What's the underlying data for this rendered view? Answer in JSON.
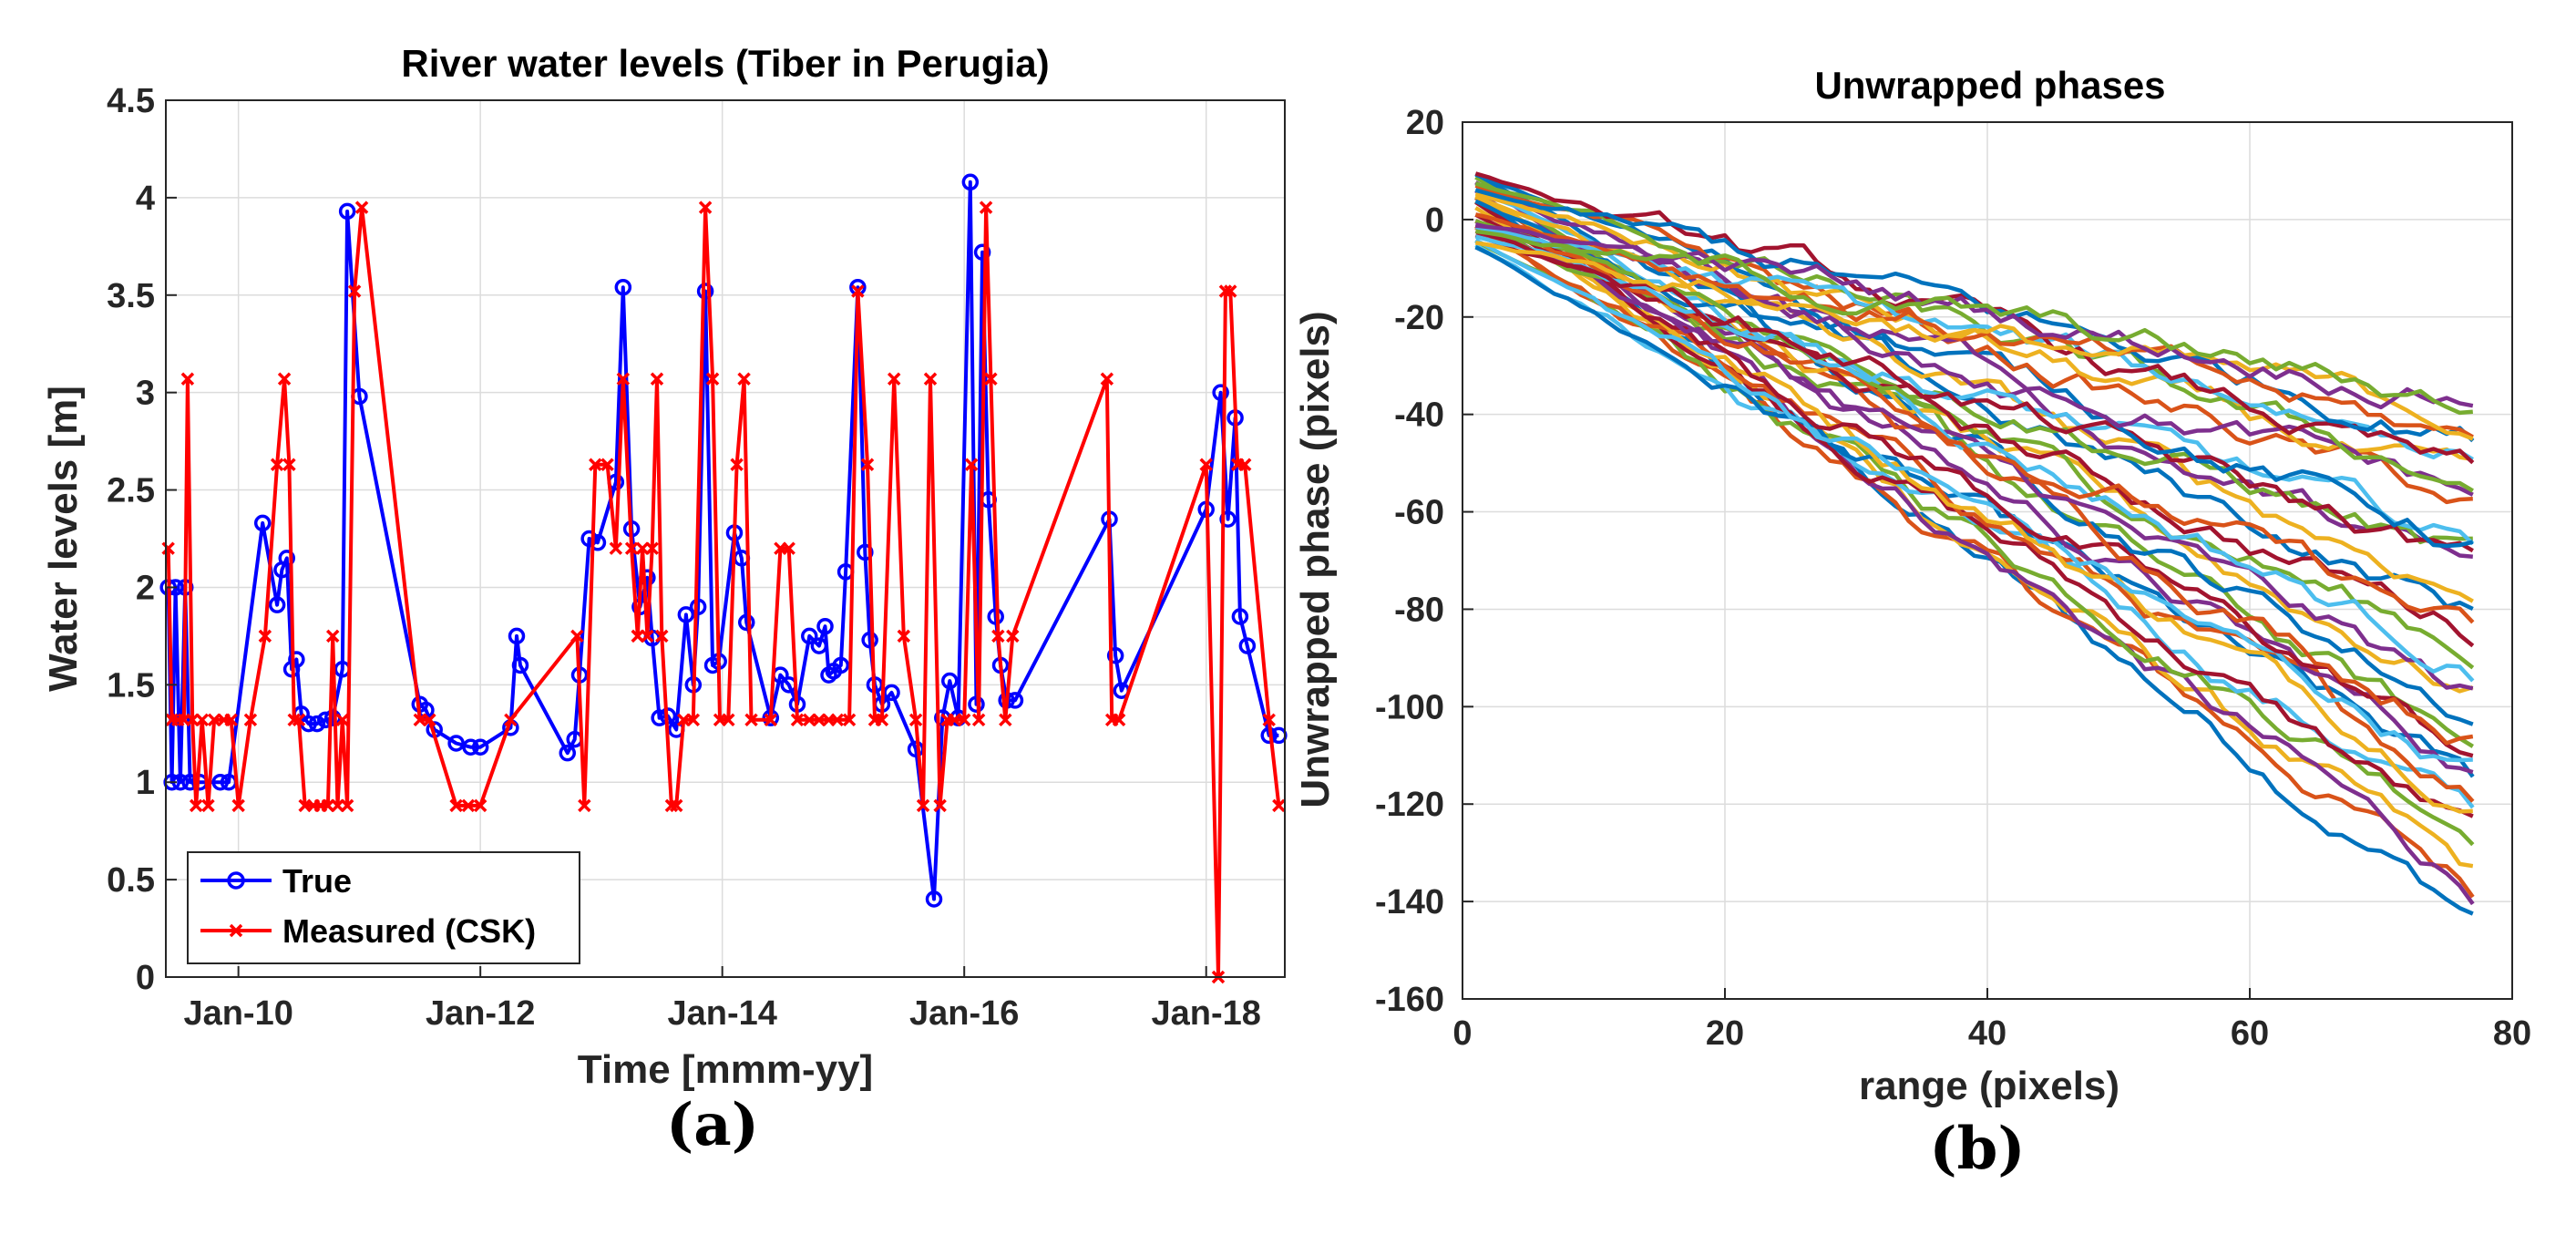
{
  "panels": [
    {
      "label": "(a)"
    },
    {
      "label": "(b)"
    }
  ],
  "chart_data": [
    {
      "type": "line",
      "title": "River water levels (Tiber in Perugia)",
      "xlabel": "Time [mmm-yy]",
      "ylabel": "Water levels [m]",
      "xlim": [
        2009.4,
        2018.65
      ],
      "ylim": [
        0,
        4.5
      ],
      "yticks": [
        0,
        0.5,
        1,
        1.5,
        2,
        2.5,
        3,
        3.5,
        4,
        4.5
      ],
      "xticks": [
        {
          "value": 2010,
          "label": "Jan-10"
        },
        {
          "value": 2012,
          "label": "Jan-12"
        },
        {
          "value": 2014,
          "label": "Jan-14"
        },
        {
          "value": 2016,
          "label": "Jan-16"
        },
        {
          "value": 2018,
          "label": "Jan-18"
        }
      ],
      "grid": true,
      "legend_position": "bottom-left",
      "series": [
        {
          "name": "True",
          "color": "#0000ff",
          "marker": "circle",
          "points": [
            [
              2009.42,
              2.0
            ],
            [
              2009.45,
              1.0
            ],
            [
              2009.48,
              2.0
            ],
            [
              2009.52,
              1.0
            ],
            [
              2009.56,
              2.0
            ],
            [
              2009.6,
              1.0
            ],
            [
              2009.68,
              1.0
            ],
            [
              2009.85,
              1.0
            ],
            [
              2009.92,
              1.0
            ],
            [
              2010.2,
              2.33
            ],
            [
              2010.32,
              1.91
            ],
            [
              2010.36,
              2.09
            ],
            [
              2010.4,
              2.15
            ],
            [
              2010.44,
              1.58
            ],
            [
              2010.48,
              1.63
            ],
            [
              2010.52,
              1.35
            ],
            [
              2010.58,
              1.3
            ],
            [
              2010.65,
              1.3
            ],
            [
              2010.72,
              1.32
            ],
            [
              2010.78,
              1.33
            ],
            [
              2010.86,
              1.58
            ],
            [
              2010.9,
              3.93
            ],
            [
              2011.0,
              2.98
            ],
            [
              2011.5,
              1.4
            ],
            [
              2011.55,
              1.37
            ],
            [
              2011.62,
              1.27
            ],
            [
              2011.8,
              1.2
            ],
            [
              2011.92,
              1.18
            ],
            [
              2012.0,
              1.18
            ],
            [
              2012.25,
              1.28
            ],
            [
              2012.3,
              1.75
            ],
            [
              2012.33,
              1.6
            ],
            [
              2012.72,
              1.15
            ],
            [
              2012.78,
              1.22
            ],
            [
              2012.82,
              1.55
            ],
            [
              2012.9,
              2.25
            ],
            [
              2012.97,
              2.23
            ],
            [
              2013.12,
              2.54
            ],
            [
              2013.18,
              3.54
            ],
            [
              2013.25,
              2.3
            ],
            [
              2013.32,
              1.9
            ],
            [
              2013.38,
              2.05
            ],
            [
              2013.42,
              1.74
            ],
            [
              2013.48,
              1.33
            ],
            [
              2013.55,
              1.34
            ],
            [
              2013.62,
              1.27
            ],
            [
              2013.7,
              1.86
            ],
            [
              2013.76,
              1.5
            ],
            [
              2013.8,
              1.9
            ],
            [
              2013.86,
              3.52
            ],
            [
              2013.92,
              1.6
            ],
            [
              2013.97,
              1.62
            ],
            [
              2014.1,
              2.28
            ],
            [
              2014.16,
              2.15
            ],
            [
              2014.2,
              1.82
            ],
            [
              2014.4,
              1.33
            ],
            [
              2014.48,
              1.55
            ],
            [
              2014.55,
              1.5
            ],
            [
              2014.62,
              1.4
            ],
            [
              2014.72,
              1.75
            ],
            [
              2014.8,
              1.7
            ],
            [
              2014.85,
              1.8
            ],
            [
              2014.88,
              1.55
            ],
            [
              2014.92,
              1.57
            ],
            [
              2014.98,
              1.6
            ],
            [
              2015.02,
              2.08
            ],
            [
              2015.12,
              3.54
            ],
            [
              2015.18,
              2.18
            ],
            [
              2015.22,
              1.73
            ],
            [
              2015.26,
              1.5
            ],
            [
              2015.32,
              1.4
            ],
            [
              2015.4,
              1.46
            ],
            [
              2015.6,
              1.17
            ],
            [
              2015.75,
              0.4
            ],
            [
              2015.82,
              1.33
            ],
            [
              2015.88,
              1.52
            ],
            [
              2015.95,
              1.33
            ],
            [
              2016.05,
              4.08
            ],
            [
              2016.1,
              1.4
            ],
            [
              2016.15,
              3.72
            ],
            [
              2016.2,
              2.45
            ],
            [
              2016.26,
              1.85
            ],
            [
              2016.3,
              1.6
            ],
            [
              2016.35,
              1.42
            ],
            [
              2016.42,
              1.42
            ],
            [
              2017.2,
              2.35
            ],
            [
              2017.25,
              1.65
            ],
            [
              2017.3,
              1.47
            ],
            [
              2018.0,
              2.4
            ],
            [
              2018.12,
              3.0
            ],
            [
              2018.18,
              2.35
            ],
            [
              2018.24,
              2.87
            ],
            [
              2018.28,
              1.85
            ],
            [
              2018.34,
              1.7
            ],
            [
              2018.52,
              1.24
            ],
            [
              2018.6,
              1.24
            ]
          ]
        },
        {
          "name": "Measured (CSK)",
          "color": "#ff0000",
          "marker": "x",
          "points": [
            [
              2009.42,
              2.2
            ],
            [
              2009.45,
              1.32
            ],
            [
              2009.5,
              1.32
            ],
            [
              2009.55,
              1.32
            ],
            [
              2009.58,
              3.07
            ],
            [
              2009.62,
              1.32
            ],
            [
              2009.65,
              0.88
            ],
            [
              2009.7,
              1.32
            ],
            [
              2009.75,
              0.88
            ],
            [
              2009.8,
              1.32
            ],
            [
              2009.88,
              1.32
            ],
            [
              2009.94,
              1.32
            ],
            [
              2010.0,
              0.88
            ],
            [
              2010.1,
              1.32
            ],
            [
              2010.22,
              1.75
            ],
            [
              2010.32,
              2.63
            ],
            [
              2010.38,
              3.07
            ],
            [
              2010.42,
              2.63
            ],
            [
              2010.46,
              1.32
            ],
            [
              2010.5,
              1.32
            ],
            [
              2010.55,
              0.88
            ],
            [
              2010.62,
              0.88
            ],
            [
              2010.68,
              0.88
            ],
            [
              2010.74,
              0.88
            ],
            [
              2010.78,
              1.75
            ],
            [
              2010.82,
              0.88
            ],
            [
              2010.86,
              1.32
            ],
            [
              2010.9,
              0.88
            ],
            [
              2010.96,
              3.52
            ],
            [
              2011.02,
              3.95
            ],
            [
              2011.5,
              1.32
            ],
            [
              2011.58,
              1.32
            ],
            [
              2011.8,
              0.88
            ],
            [
              2011.9,
              0.88
            ],
            [
              2012.0,
              0.88
            ],
            [
              2012.25,
              1.32
            ],
            [
              2012.8,
              1.75
            ],
            [
              2012.86,
              0.88
            ],
            [
              2012.95,
              2.63
            ],
            [
              2013.05,
              2.63
            ],
            [
              2013.12,
              2.2
            ],
            [
              2013.18,
              3.07
            ],
            [
              2013.25,
              2.2
            ],
            [
              2013.3,
              1.75
            ],
            [
              2013.34,
              2.2
            ],
            [
              2013.38,
              1.75
            ],
            [
              2013.42,
              2.2
            ],
            [
              2013.46,
              3.07
            ],
            [
              2013.5,
              1.75
            ],
            [
              2013.58,
              0.88
            ],
            [
              2013.62,
              0.88
            ],
            [
              2013.68,
              1.32
            ],
            [
              2013.76,
              1.32
            ],
            [
              2013.86,
              3.95
            ],
            [
              2013.92,
              3.07
            ],
            [
              2013.98,
              1.32
            ],
            [
              2014.05,
              1.32
            ],
            [
              2014.12,
              2.63
            ],
            [
              2014.18,
              3.07
            ],
            [
              2014.24,
              1.32
            ],
            [
              2014.4,
              1.32
            ],
            [
              2014.48,
              2.2
            ],
            [
              2014.55,
              2.2
            ],
            [
              2014.62,
              1.32
            ],
            [
              2014.72,
              1.32
            ],
            [
              2014.8,
              1.32
            ],
            [
              2014.88,
              1.32
            ],
            [
              2014.95,
              1.32
            ],
            [
              2015.05,
              1.32
            ],
            [
              2015.12,
              3.52
            ],
            [
              2015.2,
              2.63
            ],
            [
              2015.26,
              1.32
            ],
            [
              2015.32,
              1.32
            ],
            [
              2015.42,
              3.07
            ],
            [
              2015.5,
              1.75
            ],
            [
              2015.6,
              1.32
            ],
            [
              2015.66,
              0.88
            ],
            [
              2015.72,
              3.07
            ],
            [
              2015.8,
              0.88
            ],
            [
              2015.86,
              1.32
            ],
            [
              2015.92,
              1.32
            ],
            [
              2016.0,
              1.32
            ],
            [
              2016.06,
              2.63
            ],
            [
              2016.12,
              1.32
            ],
            [
              2016.18,
              3.95
            ],
            [
              2016.22,
              3.07
            ],
            [
              2016.28,
              1.75
            ],
            [
              2016.34,
              1.32
            ],
            [
              2016.4,
              1.75
            ],
            [
              2017.18,
              3.07
            ],
            [
              2017.22,
              1.32
            ],
            [
              2017.28,
              1.32
            ],
            [
              2018.0,
              2.63
            ],
            [
              2018.1,
              0.0
            ],
            [
              2018.16,
              3.52
            ],
            [
              2018.2,
              3.52
            ],
            [
              2018.26,
              2.63
            ],
            [
              2018.32,
              2.63
            ],
            [
              2018.52,
              1.32
            ],
            [
              2018.6,
              0.88
            ]
          ]
        }
      ]
    },
    {
      "type": "line",
      "title": "Unwrapped phases",
      "xlabel": "range (pixels)",
      "ylabel": "Unwrapped phase (pixels)",
      "xlim": [
        0,
        80
      ],
      "ylim": [
        -160,
        20
      ],
      "xticks": [
        0,
        20,
        40,
        60,
        80
      ],
      "yticks": [
        -160,
        -140,
        -120,
        -100,
        -80,
        -60,
        -40,
        -20,
        0,
        20
      ],
      "grid": true,
      "series_count": 40,
      "x_range": [
        1,
        77
      ],
      "start_range": [
        -6,
        10
      ],
      "end_range": [
        -140,
        -35
      ],
      "series_colors": [
        "#0072bd",
        "#d95319",
        "#edb120",
        "#7e2f8e",
        "#77ac30",
        "#4dbeee",
        "#a2142f"
      ]
    }
  ]
}
